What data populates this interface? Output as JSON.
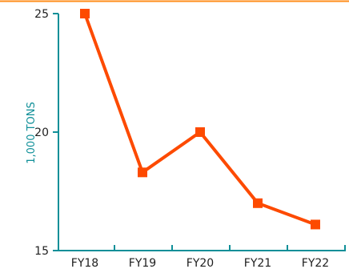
{
  "chart_data": {
    "type": "line",
    "categories": [
      "FY18",
      "FY19",
      "FY20",
      "FY21",
      "FY22"
    ],
    "series": [
      {
        "values": [
          25,
          18.3,
          20,
          17,
          16.1
        ]
      }
    ],
    "ylabel": "1,000 TONS",
    "ylim": [
      15,
      25
    ],
    "yticks": [
      15,
      20,
      25
    ],
    "grid": false,
    "legend": "none",
    "colors": {
      "line": "#fd4a00",
      "marker": "#fd4a00",
      "axis": "#0f8f98",
      "axis_text": "#1f1f1f",
      "ylabel": "#0f8f98",
      "top_rule": "#ff8d1a"
    }
  }
}
